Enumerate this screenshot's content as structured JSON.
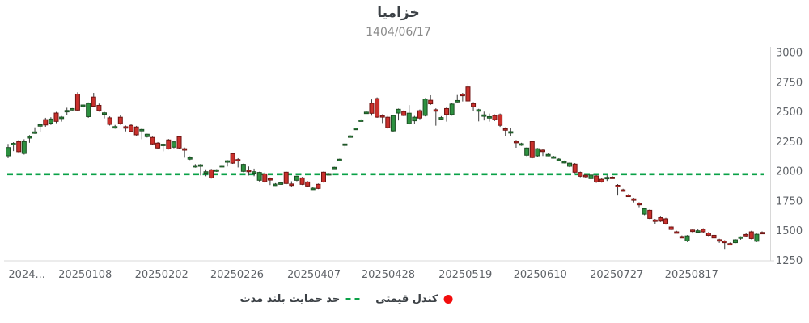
{
  "header": {
    "title": "خزامیا",
    "date": "1404/06/17"
  },
  "legend": {
    "candle_label": "کندل قیمتی",
    "candle_marker_color": "#f20d0d",
    "support_label": "حد حمایت بلند مدت",
    "support_marker_color": "#0aa147"
  },
  "chart_data": {
    "type": "candlestick",
    "title": "خزامیا",
    "subtitle": "1404/06/17",
    "ylim": [
      1250,
      3000
    ],
    "y_ticks": [
      3000,
      2750,
      2500,
      2250,
      2000,
      1750,
      1500,
      1250
    ],
    "x_ticks": [
      {
        "label": "2024...",
        "i": 3.5
      },
      {
        "label": "20250108",
        "i": 14.4
      },
      {
        "label": "20250202",
        "i": 28.7
      },
      {
        "label": "20250226",
        "i": 42.8
      },
      {
        "label": "20250407",
        "i": 57.2
      },
      {
        "label": "20250428",
        "i": 71.1
      },
      {
        "label": "20250519",
        "i": 85.5
      },
      {
        "label": "20250610",
        "i": 99.5
      },
      {
        "label": "20250727",
        "i": 113.8
      },
      {
        "label": "20250817",
        "i": 127.8
      }
    ],
    "support_line": {
      "value": 1975,
      "style": "dashed",
      "color": "#0aa147",
      "label": "حد حمایت بلند مدت"
    },
    "colors": {
      "up_fill": "#2d9140",
      "up_stroke": "#1b4d22",
      "down_fill": "#c9302c",
      "down_stroke": "#6e1412",
      "wick": "#3c3c3c",
      "axis": "#d8d8d8",
      "tick_text": "#5f6368"
    },
    "series_name": "کندل قیمتی",
    "candles": [
      [
        2130,
        2230,
        2110,
        2200
      ],
      [
        2225,
        2245,
        2170,
        2235
      ],
      [
        2250,
        2265,
        2150,
        2165
      ],
      [
        2150,
        2270,
        2140,
        2250
      ],
      [
        2285,
        2305,
        2240,
        2292
      ],
      [
        2325,
        2370,
        2315,
        2332
      ],
      [
        2385,
        2400,
        2330,
        2392
      ],
      [
        2435,
        2450,
        2375,
        2390
      ],
      [
        2405,
        2455,
        2390,
        2440
      ],
      [
        2490,
        2500,
        2405,
        2420
      ],
      [
        2450,
        2465,
        2418,
        2456
      ],
      [
        2505,
        2535,
        2472,
        2512
      ],
      [
        2522,
        2532,
        2512,
        2528
      ],
      [
        2650,
        2665,
        2505,
        2515
      ],
      [
        2552,
        2565,
        2512,
        2558
      ],
      [
        2460,
        2580,
        2450,
        2572
      ],
      [
        2625,
        2660,
        2538,
        2548
      ],
      [
        2555,
        2570,
        2502,
        2512
      ],
      [
        2488,
        2500,
        2445,
        2492
      ],
      [
        2450,
        2462,
        2385,
        2395
      ],
      [
        2372,
        2390,
        2358,
        2376
      ],
      [
        2455,
        2470,
        2392,
        2402
      ],
      [
        2375,
        2385,
        2336,
        2372
      ],
      [
        2387,
        2396,
        2328,
        2335
      ],
      [
        2373,
        2382,
        2300,
        2307
      ],
      [
        2350,
        2360,
        2270,
        2352
      ],
      [
        2292,
        2316,
        2284,
        2312
      ],
      [
        2285,
        2292,
        2224,
        2230
      ],
      [
        2237,
        2246,
        2190,
        2196
      ],
      [
        2224,
        2233,
        2168,
        2228
      ],
      [
        2264,
        2272,
        2183,
        2189
      ],
      [
        2203,
        2252,
        2194,
        2248
      ],
      [
        2291,
        2296,
        2190,
        2196
      ],
      [
        2190,
        2200,
        2114,
        2186
      ],
      [
        2110,
        2126,
        2094,
        2114
      ],
      [
        2044,
        2060,
        2030,
        2048
      ],
      [
        2050,
        2062,
        1965,
        2054
      ],
      [
        1992,
        2016,
        1958,
        1996
      ],
      [
        2012,
        2020,
        1938,
        1944
      ],
      [
        2008,
        2018,
        1994,
        2012
      ],
      [
        2046,
        2054,
        2034,
        2048
      ],
      [
        2085,
        2094,
        2040,
        2088
      ],
      [
        2148,
        2156,
        2062,
        2068
      ],
      [
        2098,
        2110,
        2032,
        2094
      ],
      [
        1999,
        2064,
        1992,
        2058
      ],
      [
        2008,
        2040,
        1964,
        2004
      ],
      [
        1992,
        2022,
        1958,
        1996
      ],
      [
        1924,
        1996,
        1914,
        1990
      ],
      [
        1978,
        1990,
        1904,
        1912
      ],
      [
        1938,
        1948,
        1884,
        1936
      ],
      [
        1890,
        1900,
        1878,
        1892
      ],
      [
        1898,
        1908,
        1886,
        1902
      ],
      [
        1992,
        1998,
        1890,
        1897
      ],
      [
        1893,
        1916,
        1868,
        1889
      ],
      [
        1924,
        1962,
        1916,
        1958
      ],
      [
        1944,
        1952,
        1884,
        1890
      ],
      [
        1910,
        1918,
        1868,
        1876
      ],
      [
        1856,
        1868,
        1844,
        1858
      ],
      [
        1890,
        1897,
        1850,
        1856
      ],
      [
        1992,
        1998,
        1904,
        1910
      ],
      [
        1976,
        1985,
        1968,
        1980
      ],
      [
        2030,
        2038,
        2022,
        2033
      ],
      [
        2098,
        2106,
        2090,
        2101
      ],
      [
        2228,
        2236,
        2194,
        2230
      ],
      [
        2295,
        2303,
        2287,
        2298
      ],
      [
        2358,
        2367,
        2350,
        2362
      ],
      [
        2428,
        2437,
        2420,
        2432
      ],
      [
        2494,
        2503,
        2486,
        2498
      ],
      [
        2572,
        2605,
        2468,
        2488
      ],
      [
        2612,
        2622,
        2450,
        2456
      ],
      [
        2468,
        2480,
        2406,
        2463
      ],
      [
        2455,
        2466,
        2358,
        2367
      ],
      [
        2340,
        2476,
        2332,
        2469
      ],
      [
        2490,
        2528,
        2428,
        2522
      ],
      [
        2503,
        2513,
        2464,
        2470
      ],
      [
        2401,
        2557,
        2394,
        2489
      ],
      [
        2425,
        2466,
        2400,
        2455
      ],
      [
        2510,
        2520,
        2438,
        2448
      ],
      [
        2470,
        2616,
        2462,
        2608
      ],
      [
        2598,
        2640,
        2558,
        2568
      ],
      [
        2518,
        2530,
        2384,
        2512
      ],
      [
        2448,
        2464,
        2434,
        2452
      ],
      [
        2528,
        2540,
        2418,
        2478
      ],
      [
        2478,
        2576,
        2468,
        2566
      ],
      [
        2592,
        2642,
        2580,
        2596
      ],
      [
        2648,
        2660,
        2588,
        2645
      ],
      [
        2710,
        2741,
        2585,
        2592
      ],
      [
        2570,
        2582,
        2504,
        2544
      ],
      [
        2515,
        2526,
        2420,
        2518
      ],
      [
        2470,
        2502,
        2428,
        2475
      ],
      [
        2455,
        2486,
        2418,
        2460
      ],
      [
        2469,
        2479,
        2424,
        2435
      ],
      [
        2476,
        2486,
        2374,
        2387
      ],
      [
        2358,
        2370,
        2298,
        2354
      ],
      [
        2330,
        2362,
        2294,
        2334
      ],
      [
        2252,
        2264,
        2198,
        2248
      ],
      [
        2230,
        2240,
        2214,
        2232
      ],
      [
        2135,
        2202,
        2126,
        2196
      ],
      [
        2250,
        2259,
        2108,
        2115
      ],
      [
        2130,
        2196,
        2120,
        2190
      ],
      [
        2178,
        2190,
        2128,
        2175
      ],
      [
        2140,
        2150,
        2126,
        2142
      ],
      [
        2118,
        2130,
        2106,
        2122
      ],
      [
        2098,
        2110,
        2086,
        2102
      ],
      [
        2078,
        2090,
        2066,
        2082
      ],
      [
        2042,
        2073,
        2034,
        2068
      ],
      [
        2060,
        2069,
        1984,
        1992
      ],
      [
        1990,
        1997,
        1950,
        1958
      ],
      [
        1966,
        1976,
        1944,
        1963
      ],
      [
        1938,
        1973,
        1930,
        1968
      ],
      [
        1960,
        1969,
        1902,
        1910
      ],
      [
        1932,
        1941,
        1904,
        1912
      ],
      [
        1944,
        1966,
        1918,
        1948
      ],
      [
        1950,
        1960,
        1936,
        1948
      ],
      [
        1882,
        1892,
        1796,
        1878
      ],
      [
        1844,
        1853,
        1828,
        1841
      ],
      [
        1799,
        1808,
        1786,
        1797
      ],
      [
        1768,
        1776,
        1738,
        1762
      ],
      [
        1730,
        1739,
        1698,
        1722
      ],
      [
        1640,
        1693,
        1631,
        1686
      ],
      [
        1672,
        1681,
        1597,
        1604
      ],
      [
        1591,
        1600,
        1558,
        1587
      ],
      [
        1610,
        1619,
        1574,
        1581
      ],
      [
        1600,
        1609,
        1551,
        1559
      ],
      [
        1532,
        1541,
        1504,
        1511
      ],
      [
        1491,
        1500,
        1481,
        1489
      ],
      [
        1451,
        1460,
        1439,
        1449
      ],
      [
        1414,
        1463,
        1404,
        1456
      ],
      [
        1506,
        1517,
        1477,
        1503
      ],
      [
        1497,
        1512,
        1479,
        1500
      ],
      [
        1512,
        1521,
        1484,
        1491
      ],
      [
        1481,
        1490,
        1454,
        1461
      ],
      [
        1461,
        1470,
        1431,
        1439
      ],
      [
        1424,
        1432,
        1397,
        1419
      ],
      [
        1411,
        1420,
        1347,
        1407
      ],
      [
        1391,
        1400,
        1379,
        1389
      ],
      [
        1399,
        1429,
        1394,
        1423
      ],
      [
        1437,
        1453,
        1424,
        1448
      ],
      [
        1468,
        1481,
        1444,
        1466
      ],
      [
        1491,
        1500,
        1427,
        1434
      ],
      [
        1411,
        1476,
        1404,
        1470
      ],
      [
        1486,
        1495,
        1476,
        1483
      ]
    ]
  }
}
